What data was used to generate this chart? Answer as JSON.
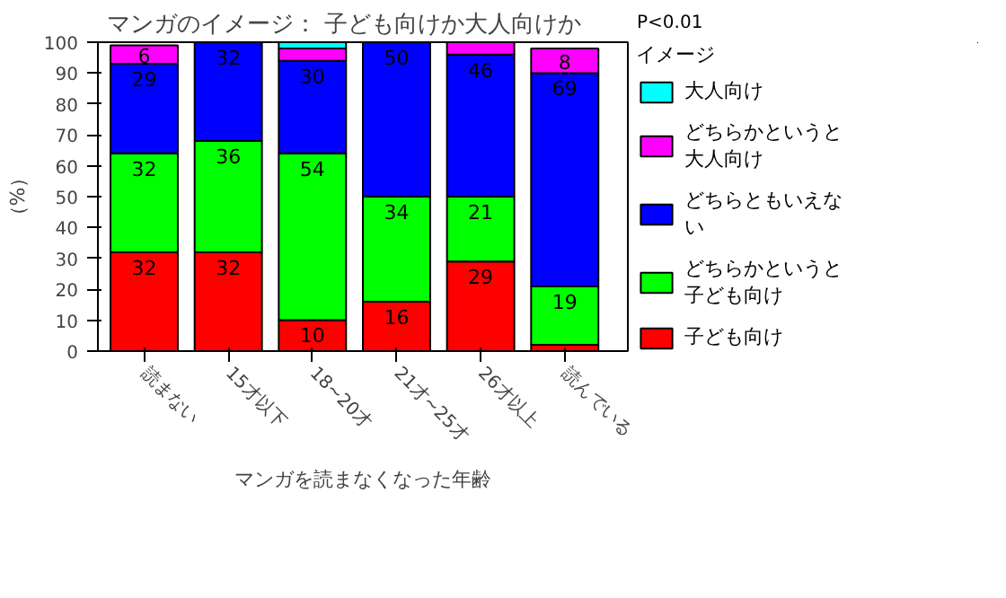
{
  "chart_data": {
    "type": "bar",
    "stacked": true,
    "title": "マンガのイメージ： 子ども向けか大人向けか",
    "xlabel": "マンガを読まなくなった年齢",
    "ylabel": "（%）",
    "legend_title": "イメージ",
    "legend": "right",
    "annotations": [
      "P<0.01"
    ],
    "categories": [
      "読まない",
      "15才以下",
      "18~20才",
      "21才~25才",
      "26才以上",
      "読んでいる"
    ],
    "ylim": [
      0,
      100
    ],
    "yticks": [
      0,
      10,
      20,
      30,
      40,
      50,
      60,
      70,
      80,
      90,
      100
    ],
    "grid": false,
    "series": [
      {
        "name": "子ども向け",
        "color": "#ff0000",
        "values": [
          32,
          32,
          10,
          16,
          29,
          2
        ],
        "value_labels": [
          "32",
          "32",
          "10",
          "16",
          "29",
          null
        ]
      },
      {
        "name": "どちらかというと子ども向け",
        "color": "#00ff00",
        "values": [
          32,
          36,
          54,
          34,
          21,
          19
        ],
        "value_labels": [
          "32",
          "36",
          "54",
          "34",
          "21",
          "19"
        ]
      },
      {
        "name": "どちらともいえない",
        "color": "#0000ff",
        "values": [
          29,
          32,
          30,
          50,
          46,
          69
        ],
        "value_labels": [
          "29",
          "32",
          "30",
          "50",
          "46",
          "69"
        ]
      },
      {
        "name": "どちらかというと大人向け",
        "color": "#ff00ff",
        "values": [
          6,
          0,
          4,
          0,
          4,
          8
        ],
        "value_labels": [
          "6",
          null,
          null,
          null,
          null,
          "8"
        ]
      },
      {
        "name": "大人向け",
        "color": "#00ffff",
        "values": [
          0,
          0,
          2,
          0,
          0,
          0
        ],
        "value_labels": [
          null,
          null,
          null,
          null,
          null,
          null
        ]
      }
    ]
  }
}
